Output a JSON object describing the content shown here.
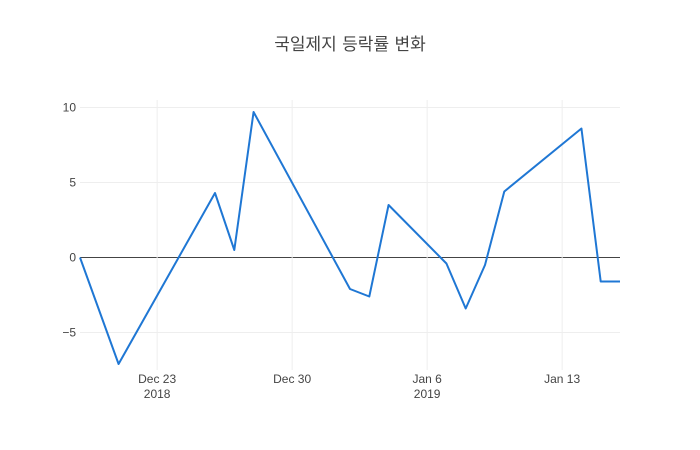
{
  "chart_data": {
    "type": "line",
    "title": "국일제지 등락률 변화",
    "xlabel": "",
    "ylabel": "",
    "xlim": [
      "2018-12-19",
      "2019-01-16"
    ],
    "ylim": [
      -7.5,
      10.5
    ],
    "grid": true,
    "legend": "none",
    "line_color": "#1f77d4",
    "yticks": [
      {
        "value": 10,
        "label": "10"
      },
      {
        "value": 5,
        "label": "5"
      },
      {
        "value": 0,
        "label": "0"
      },
      {
        "value": -5,
        "label": "−5"
      }
    ],
    "xticks": [
      {
        "date": "2018-12-23",
        "label": "Dec 23",
        "sublabel": "2018"
      },
      {
        "date": "2018-12-30",
        "label": "Dec 30",
        "sublabel": ""
      },
      {
        "date": "2019-01-06",
        "label": "Jan 6",
        "sublabel": "2019"
      },
      {
        "date": "2019-01-13",
        "label": "Jan 13",
        "sublabel": ""
      }
    ],
    "series": [
      {
        "name": "",
        "points": [
          {
            "x": "2018-12-19",
            "y": 0
          },
          {
            "x": "2018-12-21",
            "y": -7.1
          },
          {
            "x": "2018-12-26",
            "y": 4.3
          },
          {
            "x": "2018-12-27",
            "y": 0.5
          },
          {
            "x": "2018-12-28",
            "y": 9.7
          },
          {
            "x": "2019-01-02",
            "y": -2.1
          },
          {
            "x": "2019-01-03",
            "y": -2.6
          },
          {
            "x": "2019-01-04",
            "y": 3.5
          },
          {
            "x": "2019-01-07",
            "y": -0.4
          },
          {
            "x": "2019-01-08",
            "y": -3.4
          },
          {
            "x": "2019-01-09",
            "y": -0.5
          },
          {
            "x": "2019-01-10",
            "y": 4.4
          },
          {
            "x": "2019-01-14",
            "y": 8.6
          },
          {
            "x": "2019-01-15",
            "y": -1.6
          },
          {
            "x": "2019-01-16",
            "y": -1.6
          }
        ]
      }
    ]
  }
}
